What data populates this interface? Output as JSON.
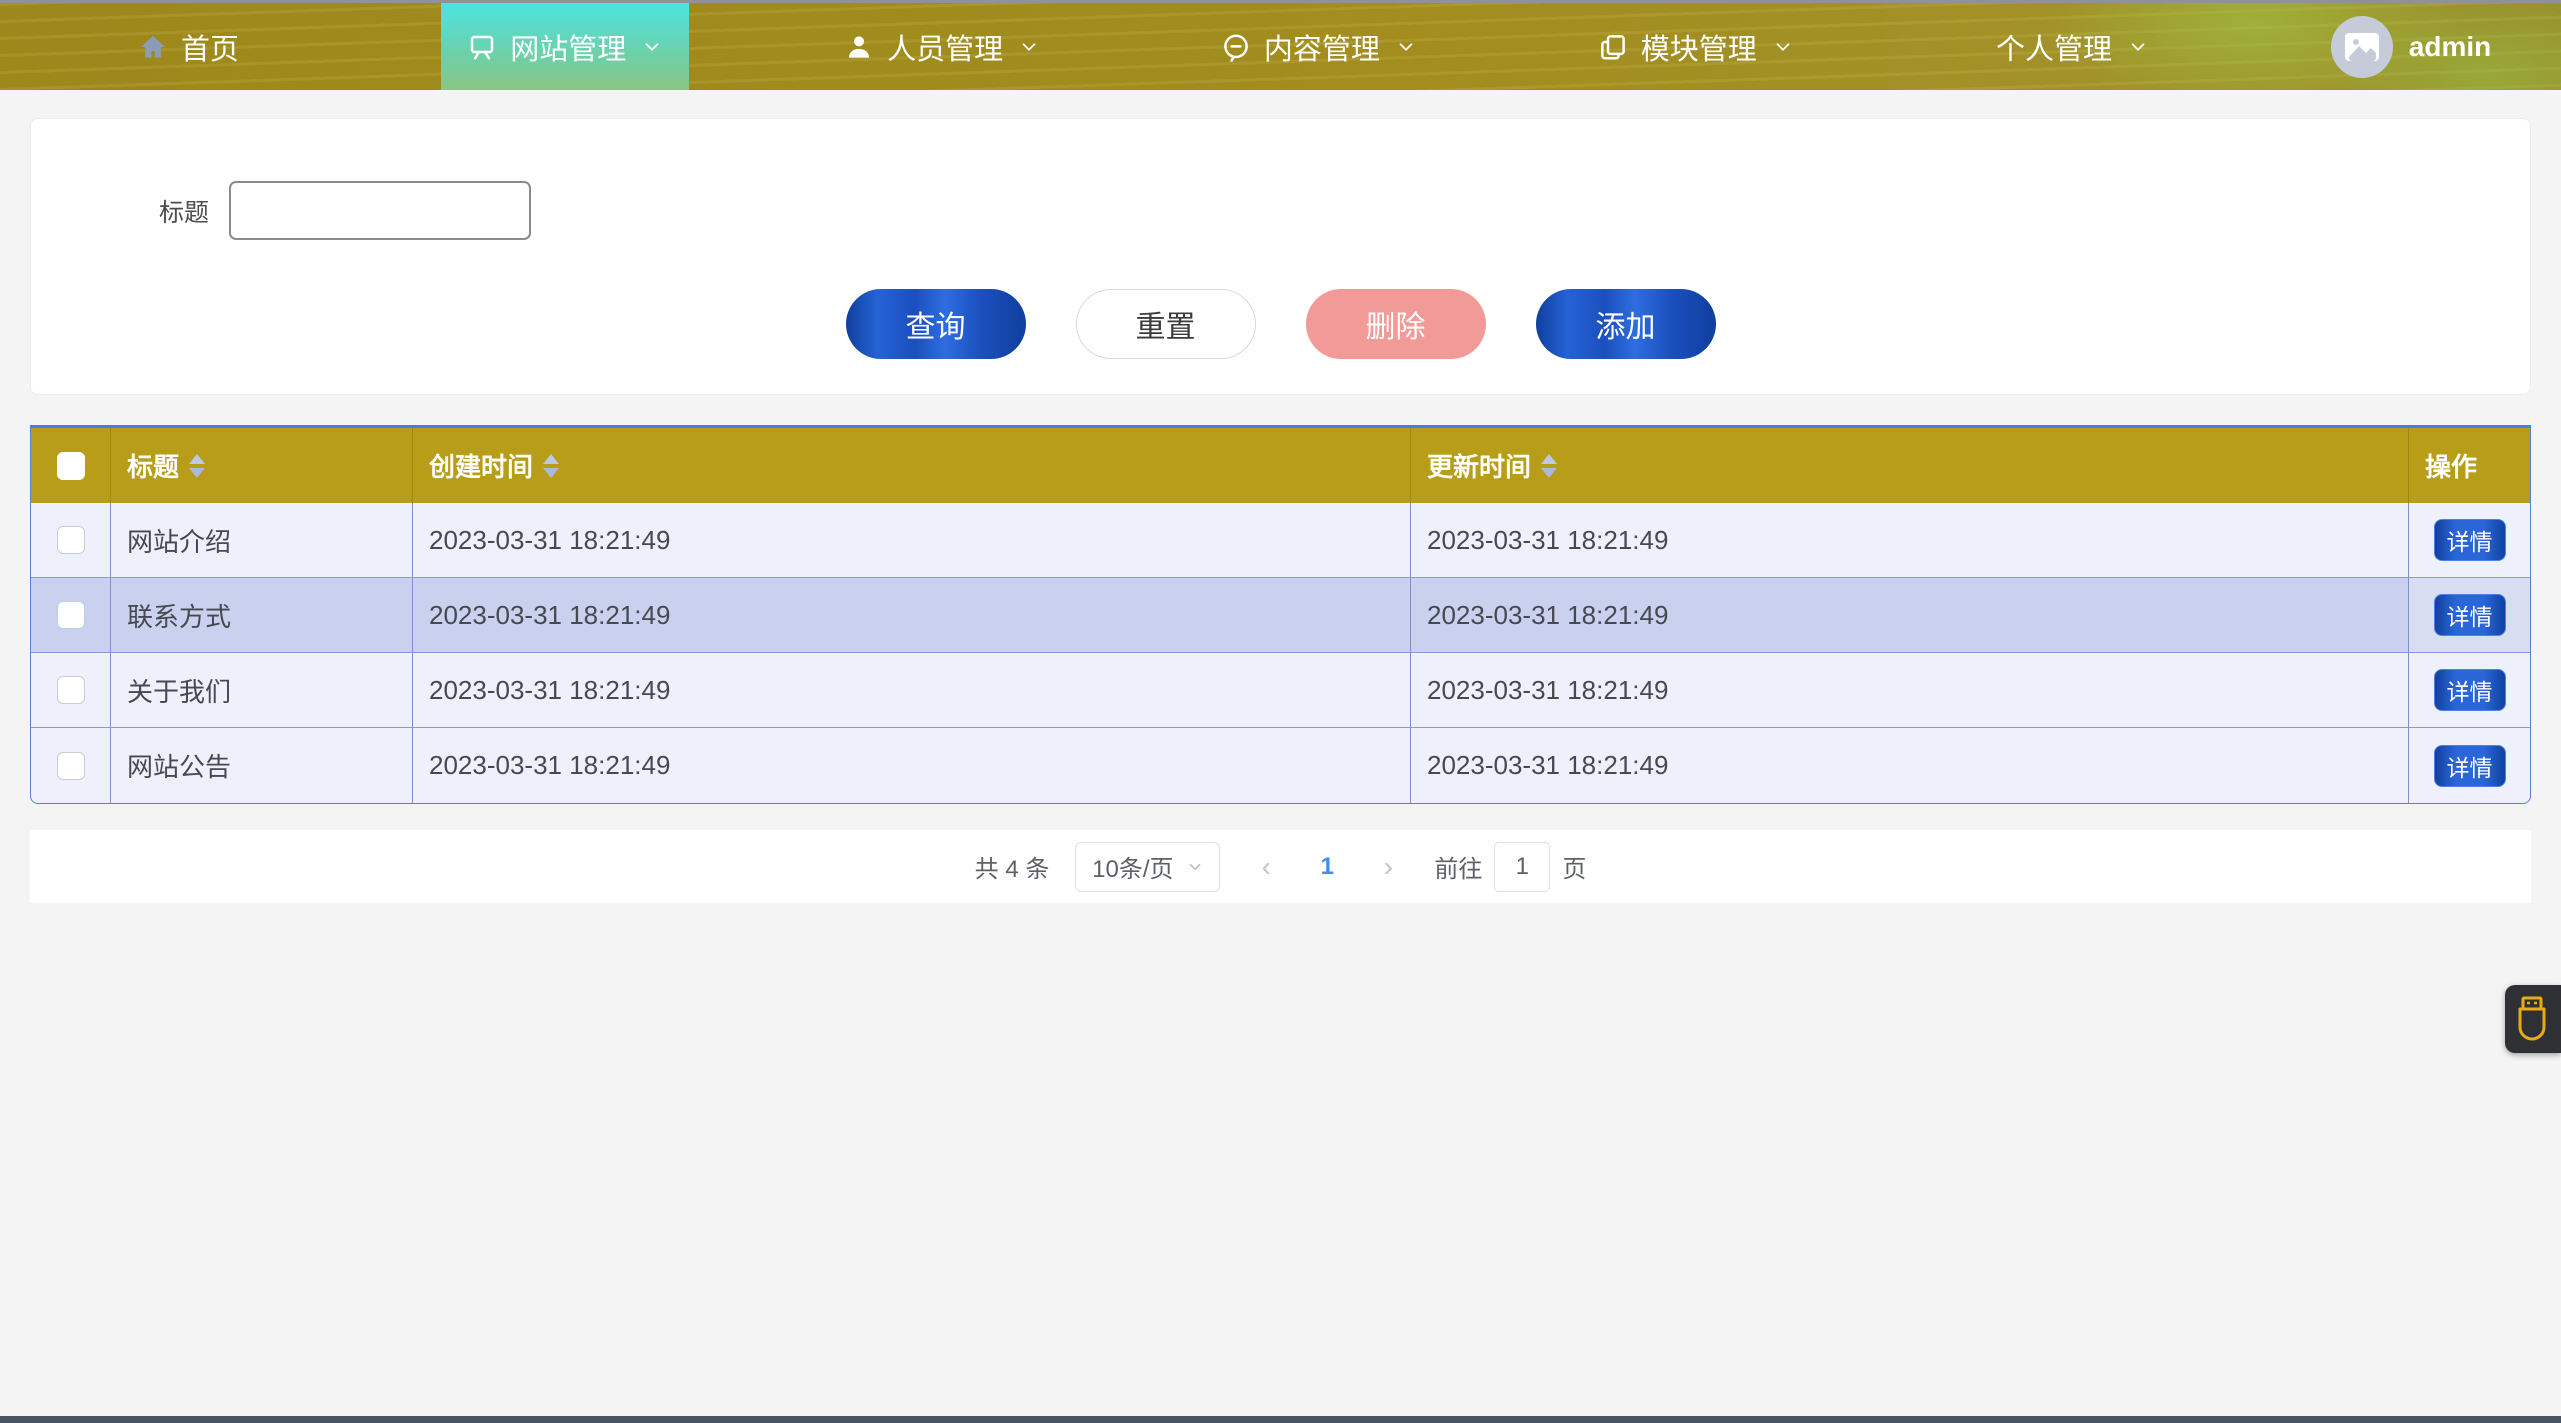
{
  "navbar": {
    "items": [
      {
        "label": "首页",
        "icon": "home-icon",
        "active": false,
        "has_dropdown": false
      },
      {
        "label": "网站管理",
        "icon": "board-icon",
        "active": true,
        "has_dropdown": true
      },
      {
        "label": "人员管理",
        "icon": "user-icon",
        "active": false,
        "has_dropdown": true
      },
      {
        "label": "内容管理",
        "icon": "comment-icon",
        "active": false,
        "has_dropdown": true
      },
      {
        "label": "模块管理",
        "icon": "copy-icon",
        "active": false,
        "has_dropdown": true
      },
      {
        "label": "个人管理",
        "icon": "",
        "active": false,
        "has_dropdown": true
      }
    ],
    "user": {
      "name": "admin"
    }
  },
  "search_form": {
    "title_label": "标题",
    "title_value": "",
    "title_placeholder": ""
  },
  "actions": {
    "query": "查询",
    "reset": "重置",
    "delete": "删除",
    "add": "添加"
  },
  "table": {
    "columns": [
      {
        "label": "标题",
        "sortable": true
      },
      {
        "label": "创建时间",
        "sortable": true
      },
      {
        "label": "更新时间",
        "sortable": true
      },
      {
        "label": "操作",
        "sortable": false
      }
    ],
    "detail_label": "详情",
    "rows": [
      {
        "title": "网站介绍",
        "created": "2023-03-31 18:21:49",
        "updated": "2023-03-31 18:21:49",
        "selected": false
      },
      {
        "title": "联系方式",
        "created": "2023-03-31 18:21:49",
        "updated": "2023-03-31 18:21:49",
        "selected": true
      },
      {
        "title": "关于我们",
        "created": "2023-03-31 18:21:49",
        "updated": "2023-03-31 18:21:49",
        "selected": false
      },
      {
        "title": "网站公告",
        "created": "2023-03-31 18:21:49",
        "updated": "2023-03-31 18:21:49",
        "selected": false
      }
    ]
  },
  "pagination": {
    "total_text": "共 4 条",
    "page_size": "10条/页",
    "prev": "‹",
    "current_page": "1",
    "next": "›",
    "goto_label": "前往",
    "goto_value": "1",
    "page_suffix": "页"
  },
  "colors": {
    "navbar_olive": "#a28d1e",
    "active_teal_top": "#4ce5de",
    "active_teal_bottom": "#8cc586",
    "table_header": "#b89d18",
    "primary_blue": "#2a66d8",
    "danger_pink": "#f29a97",
    "row_light": "#eef1fb",
    "row_selected": "#c9d1ee",
    "page_number_blue": "#3d8df5",
    "widget_gold": "#e8ab15"
  }
}
